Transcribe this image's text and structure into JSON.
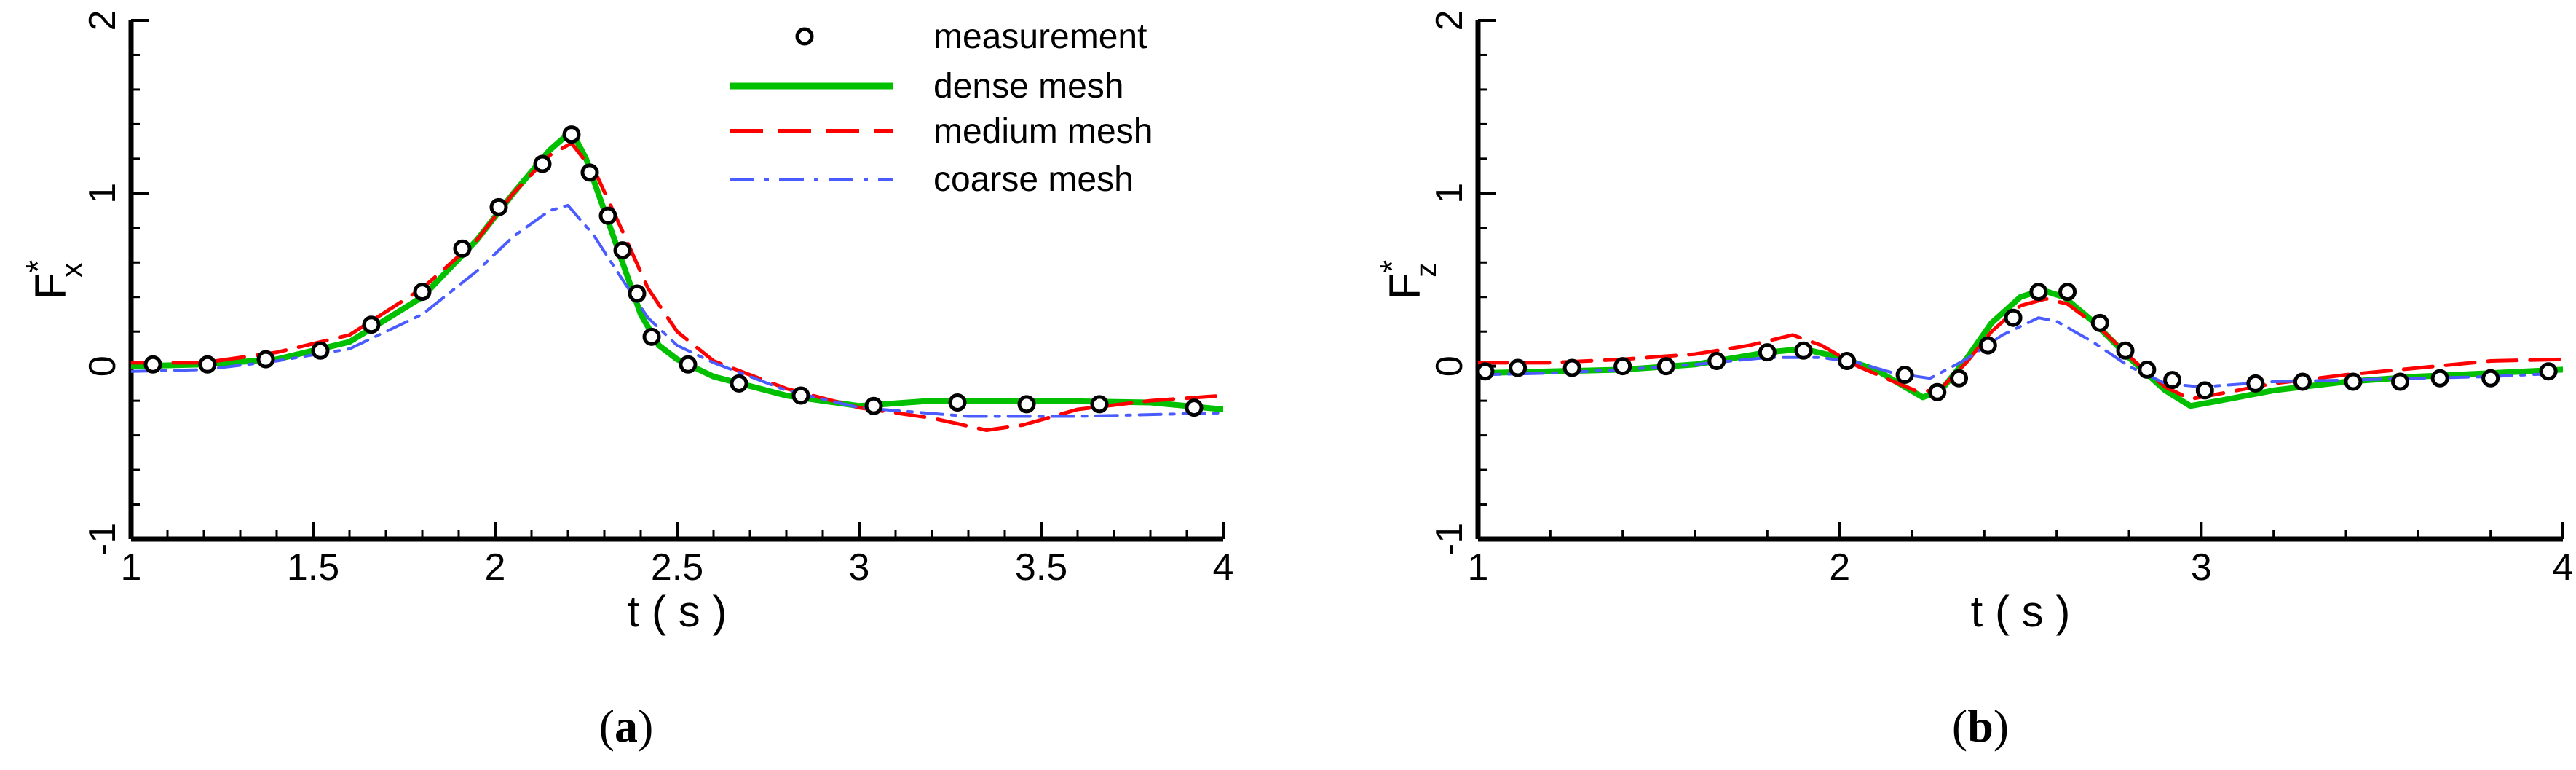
{
  "chart_data": [
    {
      "type": "line",
      "panel_label": "a",
      "xlabel": "t ( s )",
      "ylabel": "F",
      "ylabel_sup": "*",
      "ylabel_sub": "x",
      "xlim": [
        1,
        4
      ],
      "ylim": [
        -1,
        2
      ],
      "xticks": [
        "1",
        "1.5",
        "2",
        "2.5",
        "3",
        "3.5",
        "4"
      ],
      "xtick_values": [
        1,
        1.5,
        2,
        2.5,
        3,
        3.5,
        4
      ],
      "yticks": [
        "-1",
        "0",
        "1",
        "2"
      ],
      "ytick_values": [
        -1,
        0,
        1,
        2
      ],
      "legend_position": "top-right",
      "series": [
        {
          "name": "measurement",
          "style": "markers",
          "color": "#000000",
          "x": [
            1.06,
            1.21,
            1.37,
            1.52,
            1.66,
            1.8,
            1.91,
            2.01,
            2.13,
            2.21,
            2.26,
            2.31,
            2.35,
            2.39,
            2.43,
            2.53,
            2.67,
            2.84,
            3.04,
            3.27,
            3.46,
            3.66,
            3.92
          ],
          "y": [
            0.01,
            0.01,
            0.04,
            0.09,
            0.24,
            0.43,
            0.68,
            0.92,
            1.17,
            1.34,
            1.12,
            0.87,
            0.67,
            0.42,
            0.17,
            0.01,
            -0.1,
            -0.17,
            -0.23,
            -0.21,
            -0.22,
            -0.22,
            -0.24
          ]
        },
        {
          "name": "dense mesh",
          "style": "solid",
          "color": "#00c000",
          "x": [
            1.0,
            1.2,
            1.4,
            1.6,
            1.8,
            1.95,
            2.05,
            2.15,
            2.21,
            2.25,
            2.3,
            2.35,
            2.4,
            2.45,
            2.5,
            2.6,
            2.8,
            3.0,
            3.2,
            3.5,
            3.8,
            4.0
          ],
          "y": [
            0.0,
            0.01,
            0.04,
            0.14,
            0.4,
            0.73,
            1.0,
            1.25,
            1.36,
            1.2,
            0.9,
            0.6,
            0.3,
            0.12,
            0.04,
            -0.06,
            -0.17,
            -0.23,
            -0.2,
            -0.2,
            -0.21,
            -0.25
          ]
        },
        {
          "name": "medium mesh",
          "style": "dashed",
          "color": "#ff0000",
          "x": [
            1.0,
            1.2,
            1.4,
            1.6,
            1.8,
            1.95,
            2.05,
            2.15,
            2.21,
            2.28,
            2.35,
            2.42,
            2.5,
            2.6,
            2.8,
            3.0,
            3.2,
            3.35,
            3.45,
            3.6,
            3.8,
            4.0
          ],
          "y": [
            0.02,
            0.02,
            0.08,
            0.18,
            0.45,
            0.73,
            1.0,
            1.22,
            1.29,
            1.1,
            0.78,
            0.45,
            0.2,
            0.03,
            -0.13,
            -0.24,
            -0.3,
            -0.37,
            -0.34,
            -0.25,
            -0.2,
            -0.17
          ]
        },
        {
          "name": "coarse mesh",
          "style": "dashdot",
          "color": "#4a5cff",
          "x": [
            1.0,
            1.2,
            1.4,
            1.6,
            1.8,
            1.95,
            2.05,
            2.15,
            2.2,
            2.27,
            2.35,
            2.42,
            2.5,
            2.6,
            2.8,
            3.0,
            3.3,
            3.6,
            4.0
          ],
          "y": [
            -0.03,
            -0.02,
            0.03,
            0.1,
            0.3,
            0.55,
            0.75,
            0.9,
            0.93,
            0.76,
            0.5,
            0.28,
            0.12,
            0.02,
            -0.14,
            -0.24,
            -0.29,
            -0.29,
            -0.27
          ]
        }
      ]
    },
    {
      "type": "line",
      "panel_label": "b",
      "xlabel": "t ( s )",
      "ylabel": "F",
      "ylabel_sup": "*",
      "ylabel_sub": "z",
      "xlim": [
        1,
        4
      ],
      "ylim": [
        -1,
        2
      ],
      "xticks": [
        "1",
        "2",
        "3",
        "4"
      ],
      "xtick_values": [
        1,
        2,
        3,
        4
      ],
      "yticks": [
        "-1",
        "0",
        "1",
        "2"
      ],
      "ytick_values": [
        -1,
        0,
        1,
        2
      ],
      "series": [
        {
          "name": "measurement",
          "style": "markers",
          "color": "#000000",
          "x": [
            1.02,
            1.11,
            1.26,
            1.4,
            1.52,
            1.66,
            1.8,
            1.9,
            2.02,
            2.18,
            2.27,
            2.33,
            2.41,
            2.48,
            2.55,
            2.63,
            2.72,
            2.79,
            2.85,
            2.92,
            3.01,
            3.15,
            3.28,
            3.42,
            3.55,
            3.66,
            3.8,
            3.96
          ],
          "y": [
            -0.03,
            -0.01,
            -0.01,
            0.0,
            0.0,
            0.03,
            0.08,
            0.09,
            0.03,
            -0.05,
            -0.15,
            -0.07,
            0.12,
            0.28,
            0.43,
            0.43,
            0.25,
            0.09,
            -0.02,
            -0.08,
            -0.14,
            -0.1,
            -0.09,
            -0.09,
            -0.09,
            -0.07,
            -0.07,
            -0.03
          ]
        },
        {
          "name": "dense mesh",
          "style": "solid",
          "color": "#00c000",
          "x": [
            1.0,
            1.2,
            1.4,
            1.6,
            1.8,
            1.9,
            2.0,
            2.1,
            2.18,
            2.23,
            2.28,
            2.35,
            2.42,
            2.5,
            2.56,
            2.62,
            2.7,
            2.8,
            2.9,
            2.97,
            3.05,
            3.2,
            3.4,
            3.6,
            3.8,
            4.0
          ],
          "y": [
            -0.04,
            -0.03,
            -0.02,
            0.01,
            0.08,
            0.1,
            0.05,
            -0.02,
            -0.12,
            -0.18,
            -0.14,
            0.04,
            0.25,
            0.4,
            0.44,
            0.4,
            0.26,
            0.05,
            -0.14,
            -0.23,
            -0.2,
            -0.14,
            -0.09,
            -0.06,
            -0.04,
            -0.02
          ]
        },
        {
          "name": "medium mesh",
          "style": "dashed",
          "color": "#ff0000",
          "x": [
            1.0,
            1.2,
            1.4,
            1.6,
            1.75,
            1.87,
            1.95,
            2.05,
            2.15,
            2.22,
            2.28,
            2.35,
            2.42,
            2.5,
            2.57,
            2.63,
            2.72,
            2.82,
            2.9,
            2.97,
            3.05,
            3.2,
            3.4,
            3.6,
            3.8,
            4.0
          ],
          "y": [
            0.02,
            0.02,
            0.04,
            0.07,
            0.12,
            0.18,
            0.12,
            0.0,
            -0.09,
            -0.15,
            -0.13,
            0.02,
            0.2,
            0.35,
            0.39,
            0.36,
            0.22,
            0.02,
            -0.12,
            -0.19,
            -0.16,
            -0.1,
            -0.05,
            -0.01,
            0.03,
            0.04
          ]
        },
        {
          "name": "coarse mesh",
          "style": "dashdot",
          "color": "#4a5cff",
          "x": [
            1.0,
            1.2,
            1.4,
            1.6,
            1.8,
            1.95,
            2.05,
            2.15,
            2.25,
            2.35,
            2.45,
            2.55,
            2.6,
            2.7,
            2.8,
            2.9,
            3.0,
            3.2,
            3.4,
            3.6,
            3.8,
            4.0
          ],
          "y": [
            -0.05,
            -0.04,
            -0.02,
            0.01,
            0.05,
            0.05,
            0.02,
            -0.04,
            -0.07,
            0.04,
            0.18,
            0.28,
            0.26,
            0.14,
            0.0,
            -0.1,
            -0.12,
            -0.09,
            -0.08,
            -0.07,
            -0.06,
            -0.04
          ]
        }
      ]
    }
  ]
}
